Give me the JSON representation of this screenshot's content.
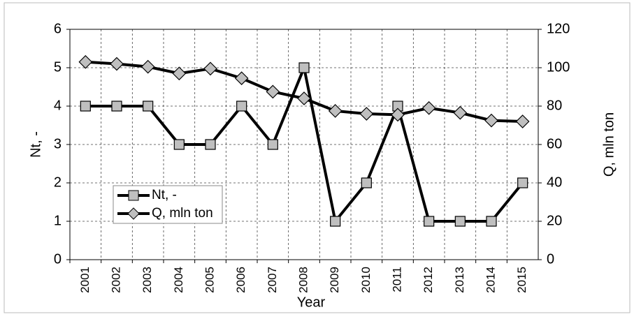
{
  "chart_data": {
    "type": "line",
    "x_label": "Year",
    "y_label": "Nt, -",
    "y2_label": "Q, mln ton",
    "categories": [
      "2001",
      "2002",
      "2003",
      "2004",
      "2005",
      "2006",
      "2007",
      "2008",
      "2009",
      "2010",
      "2011",
      "2012",
      "2013",
      "2014",
      "2015"
    ],
    "series": [
      {
        "name": "Nt, -",
        "color": "#bfbfbf",
        "marker": "square",
        "values": [
          4,
          4,
          4,
          3,
          3,
          4,
          3,
          5,
          1,
          2,
          4,
          1,
          1,
          1,
          2
        ]
      },
      {
        "name": "Q, mln ton",
        "color": "#bfbfbf",
        "marker": "diamond",
        "axis": "y2",
        "values": [
          103,
          102,
          100.5,
          97,
          99.5,
          94.5,
          87.5,
          84,
          77.5,
          76,
          75.5,
          79,
          76.5,
          72.5,
          72
        ]
      }
    ],
    "ylim": [
      0,
      6
    ],
    "yticks": [
      0,
      1,
      2,
      3,
      4,
      5,
      6
    ],
    "y2lim": [
      0,
      120
    ],
    "y2ticks": [
      0,
      20,
      40,
      60,
      80,
      100,
      120
    ],
    "grid": true,
    "legend": "lower left"
  }
}
